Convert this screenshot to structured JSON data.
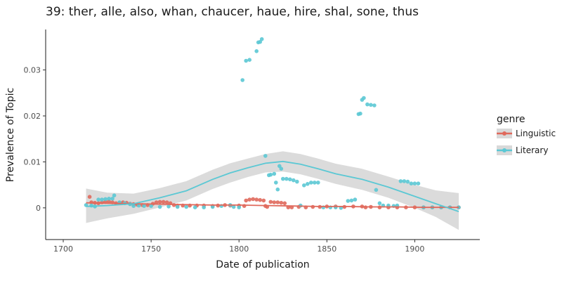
{
  "chart_data": {
    "type": "scatter",
    "title": "39: ther, alle, also, whan, chaucer, haue, hire, shal, sone, thus",
    "xlabel": "Date of publication",
    "ylabel": "Prevalence of Topic",
    "xlim": [
      1690,
      1937
    ],
    "ylim": [
      -0.0069,
      0.0388
    ],
    "xticks": [
      1700,
      1750,
      1800,
      1850,
      1900
    ],
    "yticks": [
      0,
      0.01,
      0.02,
      0.03
    ],
    "ytick_labels": [
      "0",
      "0.01",
      "0.02",
      "0.03"
    ],
    "grid": false,
    "legend": {
      "title": "genre",
      "position": "right"
    },
    "series": [
      {
        "name": "Linguistic",
        "color": "#E0695C",
        "points": [
          [
            1715,
            0.0024
          ],
          [
            1716,
            0.0012
          ],
          [
            1718,
            0.0011
          ],
          [
            1720,
            0.001
          ],
          [
            1722,
            0.0012
          ],
          [
            1724,
            0.0013
          ],
          [
            1726,
            0.0014
          ],
          [
            1728,
            0.0012
          ],
          [
            1730,
            0.001
          ],
          [
            1732,
            0.0011
          ],
          [
            1734,
            0.0012
          ],
          [
            1736,
            0.0011
          ],
          [
            1738,
            0.0009
          ],
          [
            1740,
            0.0008
          ],
          [
            1742,
            0.0007
          ],
          [
            1745,
            0.0006
          ],
          [
            1748,
            0.0006
          ],
          [
            1751,
            0.0009
          ],
          [
            1753,
            0.0012
          ],
          [
            1755,
            0.0013
          ],
          [
            1757,
            0.0013
          ],
          [
            1759,
            0.0012
          ],
          [
            1761,
            0.001
          ],
          [
            1763,
            0.0006
          ],
          [
            1765,
            0.0005
          ],
          [
            1768,
            0.0005
          ],
          [
            1772,
            0.0005
          ],
          [
            1776,
            0.0005
          ],
          [
            1780,
            0.0005
          ],
          [
            1785,
            0.0004
          ],
          [
            1788,
            0.0005
          ],
          [
            1792,
            0.0006
          ],
          [
            1795,
            0.0005
          ],
          [
            1800,
            0.0005
          ],
          [
            1803,
            0.0004
          ],
          [
            1804,
            0.0016
          ],
          [
            1806,
            0.0018
          ],
          [
            1808,
            0.0019
          ],
          [
            1810,
            0.0018
          ],
          [
            1812,
            0.0017
          ],
          [
            1814,
            0.0016
          ],
          [
            1815,
            0.0004
          ],
          [
            1816,
            0.0002
          ],
          [
            1818,
            0.0013
          ],
          [
            1820,
            0.0012
          ],
          [
            1822,
            0.0012
          ],
          [
            1824,
            0.0011
          ],
          [
            1826,
            0.001
          ],
          [
            1828,
            0.0001
          ],
          [
            1830,
            0.0001
          ],
          [
            1834,
            0.0002
          ],
          [
            1838,
            0.0001
          ],
          [
            1842,
            0.0002
          ],
          [
            1846,
            0.0002
          ],
          [
            1850,
            0.0003
          ],
          [
            1855,
            0.0003
          ],
          [
            1860,
            0.0002
          ],
          [
            1865,
            0.0003
          ],
          [
            1870,
            0.0003
          ],
          [
            1872,
            0.0001
          ],
          [
            1875,
            0.0002
          ],
          [
            1880,
            0.0001
          ],
          [
            1885,
            0.0001
          ],
          [
            1890,
            0.0001
          ],
          [
            1895,
            0.0001
          ],
          [
            1900,
            0.0001
          ],
          [
            1905,
            0.0001
          ],
          [
            1910,
            0.0001
          ],
          [
            1915,
            0.0001
          ],
          [
            1920,
            0.0001
          ],
          [
            1925,
            0.0001
          ]
        ],
        "trend": [
          [
            1713,
            0.0011
          ],
          [
            1725,
            0.001
          ],
          [
            1740,
            0.0009
          ],
          [
            1755,
            0.0008
          ],
          [
            1770,
            0.0007
          ],
          [
            1785,
            0.0006
          ],
          [
            1800,
            0.0006
          ],
          [
            1815,
            0.0005
          ],
          [
            1830,
            0.0004
          ],
          [
            1845,
            0.0003
          ],
          [
            1860,
            0.0003
          ],
          [
            1875,
            0.0002
          ],
          [
            1890,
            0.0002
          ],
          [
            1905,
            0.0001
          ],
          [
            1925,
            0.0001
          ]
        ]
      },
      {
        "name": "Literary",
        "color": "#5BC8D4",
        "points": [
          [
            1713,
            0.0006
          ],
          [
            1716,
            0.0005
          ],
          [
            1718,
            0.0003
          ],
          [
            1720,
            0.0018
          ],
          [
            1722,
            0.0018
          ],
          [
            1724,
            0.0019
          ],
          [
            1726,
            0.002
          ],
          [
            1728,
            0.002
          ],
          [
            1729,
            0.0027
          ],
          [
            1732,
            0.0012
          ],
          [
            1735,
            0.001
          ],
          [
            1738,
            0.0008
          ],
          [
            1740,
            0.0004
          ],
          [
            1743,
            0.0005
          ],
          [
            1746,
            0.0004
          ],
          [
            1750,
            0.0004
          ],
          [
            1755,
            0.0002
          ],
          [
            1760,
            0.0003
          ],
          [
            1765,
            0.0002
          ],
          [
            1770,
            0.0002
          ],
          [
            1775,
            0.0001
          ],
          [
            1780,
            0.0001
          ],
          [
            1785,
            0.0002
          ],
          [
            1790,
            0.0004
          ],
          [
            1795,
            0.0006
          ],
          [
            1797,
            0.0002
          ],
          [
            1800,
            0.0001
          ],
          [
            1802,
            0.0278
          ],
          [
            1804,
            0.032
          ],
          [
            1806,
            0.0322
          ],
          [
            1810,
            0.0341
          ],
          [
            1811,
            0.036
          ],
          [
            1812,
            0.0361
          ],
          [
            1813,
            0.0367
          ],
          [
            1815,
            0.0113
          ],
          [
            1817,
            0.0071
          ],
          [
            1818,
            0.0072
          ],
          [
            1820,
            0.0074
          ],
          [
            1821,
            0.0055
          ],
          [
            1822,
            0.004
          ],
          [
            1823,
            0.0091
          ],
          [
            1824,
            0.0085
          ],
          [
            1825,
            0.0063
          ],
          [
            1827,
            0.0063
          ],
          [
            1829,
            0.0062
          ],
          [
            1831,
            0.006
          ],
          [
            1833,
            0.0057
          ],
          [
            1835,
            0.0005
          ],
          [
            1837,
            0.0049
          ],
          [
            1839,
            0.0052
          ],
          [
            1841,
            0.0055
          ],
          [
            1843,
            0.0055
          ],
          [
            1845,
            0.0055
          ],
          [
            1848,
            0.0001
          ],
          [
            1852,
            0.0001
          ],
          [
            1855,
            0.0001
          ],
          [
            1858,
            0.0
          ],
          [
            1862,
            0.0015
          ],
          [
            1864,
            0.0016
          ],
          [
            1866,
            0.0018
          ],
          [
            1868,
            0.0204
          ],
          [
            1869,
            0.0205
          ],
          [
            1870,
            0.0235
          ],
          [
            1871,
            0.0239
          ],
          [
            1873,
            0.0225
          ],
          [
            1875,
            0.0224
          ],
          [
            1877,
            0.0223
          ],
          [
            1878,
            0.0039
          ],
          [
            1880,
            0.001
          ],
          [
            1882,
            0.0005
          ],
          [
            1885,
            0.0005
          ],
          [
            1888,
            0.0004
          ],
          [
            1890,
            0.0005
          ],
          [
            1892,
            0.0058
          ],
          [
            1894,
            0.0058
          ],
          [
            1896,
            0.0057
          ],
          [
            1898,
            0.0053
          ],
          [
            1900,
            0.0053
          ],
          [
            1902,
            0.0053
          ],
          [
            1905,
            0.0001
          ],
          [
            1910,
            0.0001
          ],
          [
            1915,
            0.0001
          ],
          [
            1920,
            0.0001
          ],
          [
            1925,
            0.0001
          ]
        ],
        "trend": [
          [
            1713,
            0.0003
          ],
          [
            1725,
            0.0005
          ],
          [
            1740,
            0.0009
          ],
          [
            1755,
            0.0022
          ],
          [
            1770,
            0.0037
          ],
          [
            1785,
            0.0062
          ],
          [
            1795,
            0.0076
          ],
          [
            1805,
            0.0087
          ],
          [
            1815,
            0.0097
          ],
          [
            1825,
            0.0101
          ],
          [
            1835,
            0.0095
          ],
          [
            1845,
            0.0085
          ],
          [
            1855,
            0.0074
          ],
          [
            1870,
            0.0062
          ],
          [
            1885,
            0.0045
          ],
          [
            1900,
            0.0025
          ],
          [
            1912,
            0.0009
          ],
          [
            1925,
            -0.0008
          ]
        ],
        "band_upper": [
          [
            1713,
            0.0042
          ],
          [
            1725,
            0.0033
          ],
          [
            1740,
            0.0031
          ],
          [
            1755,
            0.0043
          ],
          [
            1770,
            0.0058
          ],
          [
            1785,
            0.0083
          ],
          [
            1795,
            0.0097
          ],
          [
            1805,
            0.0107
          ],
          [
            1815,
            0.0117
          ],
          [
            1825,
            0.0123
          ],
          [
            1835,
            0.0117
          ],
          [
            1845,
            0.0107
          ],
          [
            1855,
            0.0096
          ],
          [
            1870,
            0.0085
          ],
          [
            1885,
            0.0068
          ],
          [
            1900,
            0.005
          ],
          [
            1912,
            0.0038
          ],
          [
            1925,
            0.0032
          ]
        ],
        "band_lower": [
          [
            1713,
            -0.0033
          ],
          [
            1725,
            -0.0023
          ],
          [
            1740,
            -0.0013
          ],
          [
            1755,
            0.0001
          ],
          [
            1770,
            0.0016
          ],
          [
            1785,
            0.0041
          ],
          [
            1795,
            0.0055
          ],
          [
            1805,
            0.0067
          ],
          [
            1815,
            0.0077
          ],
          [
            1825,
            0.0079
          ],
          [
            1835,
            0.0073
          ],
          [
            1845,
            0.0063
          ],
          [
            1855,
            0.0052
          ],
          [
            1870,
            0.0039
          ],
          [
            1885,
            0.0022
          ],
          [
            1900,
            0.0
          ],
          [
            1912,
            -0.002
          ],
          [
            1925,
            -0.0048
          ]
        ]
      }
    ]
  }
}
